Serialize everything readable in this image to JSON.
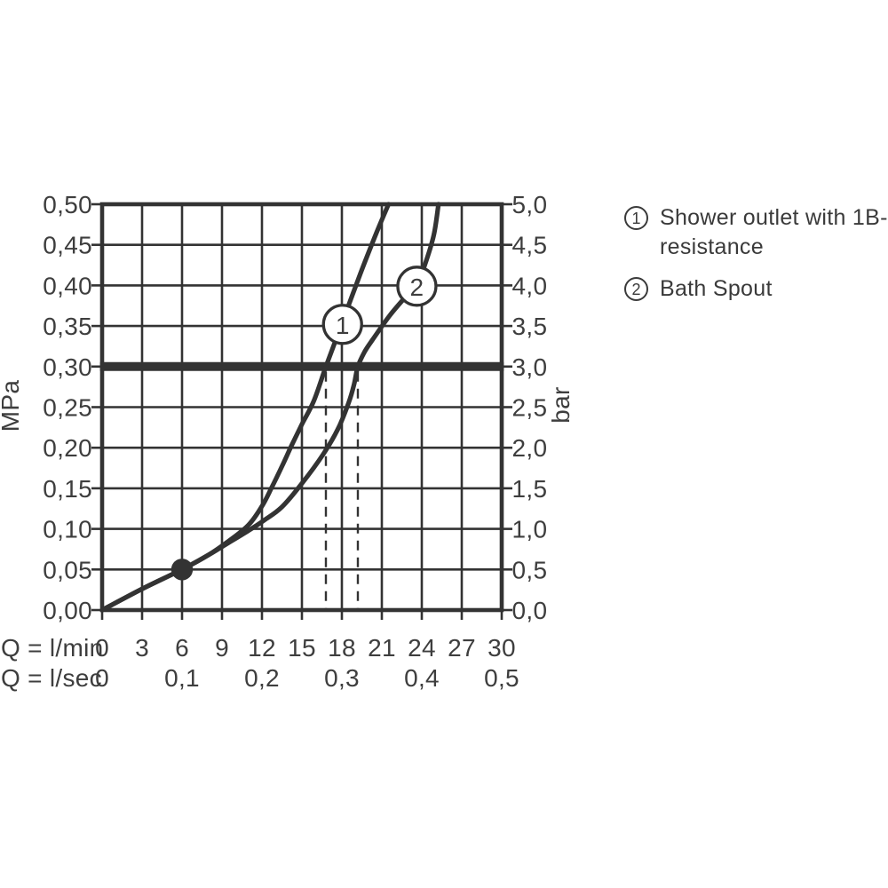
{
  "colors": {
    "line": "#333333",
    "text": "#3e3e3e",
    "background": "#ffffff"
  },
  "legend": {
    "items": [
      {
        "number": "1",
        "lines": [
          "Shower outlet with 1B-",
          "resistance"
        ]
      },
      {
        "number": "2",
        "lines": [
          "Bath Spout"
        ]
      }
    ]
  },
  "chart_data": {
    "type": "line",
    "title": "",
    "grid": true,
    "x_axis": {
      "label_row1": "Q = l/min",
      "label_row2": "Q = l/sec",
      "min": 0,
      "max": 30,
      "tick_step_lmin": 3,
      "ticks_lmin": [
        "0",
        "3",
        "6",
        "9",
        "12",
        "15",
        "18",
        "21",
        "24",
        "27",
        "30"
      ],
      "ticks_lsec": [
        {
          "label": "0",
          "at": 0
        },
        {
          "label": "0,1",
          "at": 6
        },
        {
          "label": "0,2",
          "at": 12
        },
        {
          "label": "0,3",
          "at": 18
        },
        {
          "label": "0,4",
          "at": 24
        },
        {
          "label": "0,5",
          "at": 30
        }
      ]
    },
    "y_axis_left": {
      "label": "MPa",
      "min": 0,
      "max": 0.5,
      "tick_step": 0.05,
      "tick_labels": [
        "0,00",
        "0,05",
        "0,10",
        "0,15",
        "0,20",
        "0,25",
        "0,30",
        "0,35",
        "0,40",
        "0,45",
        "0,50"
      ]
    },
    "y_axis_right": {
      "label": "bar",
      "min": 0,
      "max": 5,
      "tick_step": 0.5,
      "tick_labels": [
        "0,0",
        "0,5",
        "1,0",
        "1,5",
        "2,0",
        "2,5",
        "3,0",
        "3,5",
        "4,0",
        "4,5",
        "5,0"
      ]
    },
    "reference_line_mpa": 0.3,
    "dashed_lines_x": [
      16.8,
      19.2
    ],
    "point_marker": {
      "x": 6,
      "y": 0.05
    },
    "series": [
      {
        "id": "1",
        "name": "Shower outlet with 1B- resistance",
        "marker": {
          "label": "1",
          "x": 18.05,
          "y": 0.352
        },
        "flow_at_reference_lmin": 16.8,
        "points": [
          [
            0,
            0
          ],
          [
            3,
            0.026
          ],
          [
            6,
            0.05
          ],
          [
            8,
            0.068
          ],
          [
            9.5,
            0.085
          ],
          [
            11,
            0.105
          ],
          [
            12,
            0.128
          ],
          [
            12.7,
            0.15
          ],
          [
            13.5,
            0.177
          ],
          [
            14.2,
            0.202
          ],
          [
            15,
            0.229
          ],
          [
            15.9,
            0.258
          ],
          [
            16.8,
            0.3
          ],
          [
            18,
            0.353
          ],
          [
            19.4,
            0.415
          ],
          [
            20.6,
            0.465
          ],
          [
            21.5,
            0.5
          ]
        ]
      },
      {
        "id": "2",
        "name": "Bath Spout",
        "marker": {
          "label": "2",
          "x": 23.63,
          "y": 0.399
        },
        "flow_at_reference_lmin": 19.2,
        "points": [
          [
            0,
            0
          ],
          [
            3,
            0.026
          ],
          [
            6,
            0.05
          ],
          [
            8,
            0.068
          ],
          [
            9.5,
            0.083
          ],
          [
            11,
            0.098
          ],
          [
            12.2,
            0.111
          ],
          [
            13.5,
            0.127
          ],
          [
            15,
            0.156
          ],
          [
            16.6,
            0.192
          ],
          [
            17.7,
            0.223
          ],
          [
            18.5,
            0.255
          ],
          [
            18.9,
            0.277
          ],
          [
            19.2,
            0.3
          ],
          [
            19.7,
            0.318
          ],
          [
            20.3,
            0.333
          ],
          [
            21.6,
            0.363
          ],
          [
            22.9,
            0.388
          ],
          [
            23.6,
            0.4
          ],
          [
            24.2,
            0.424
          ],
          [
            24.9,
            0.462
          ],
          [
            25.25,
            0.5
          ]
        ]
      }
    ]
  }
}
